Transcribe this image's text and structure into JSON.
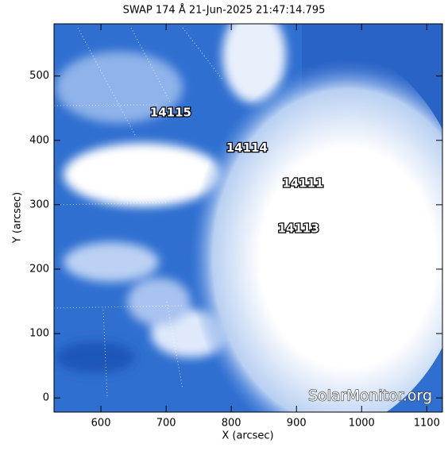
{
  "chart_data": {
    "type": "image",
    "title": "SWAP 174 Å 21-Jun-2025 21:47:14.795",
    "xlabel": "X (arcsec)",
    "ylabel": "Y (arcsec)",
    "xlim": [
      528,
      1124
    ],
    "ylim": [
      -22,
      581
    ],
    "xticks": [
      600,
      700,
      800,
      900,
      1000,
      1100
    ],
    "yticks": [
      0,
      100,
      200,
      300,
      400,
      500
    ],
    "regions": [
      {
        "label": "14115",
        "x": 707,
        "y": 443
      },
      {
        "label": "14114",
        "x": 824,
        "y": 388
      },
      {
        "label": "14111",
        "x": 910,
        "y": 333
      },
      {
        "label": "14113",
        "x": 903,
        "y": 263
      }
    ],
    "watermark": "SolarMonitor.org"
  }
}
